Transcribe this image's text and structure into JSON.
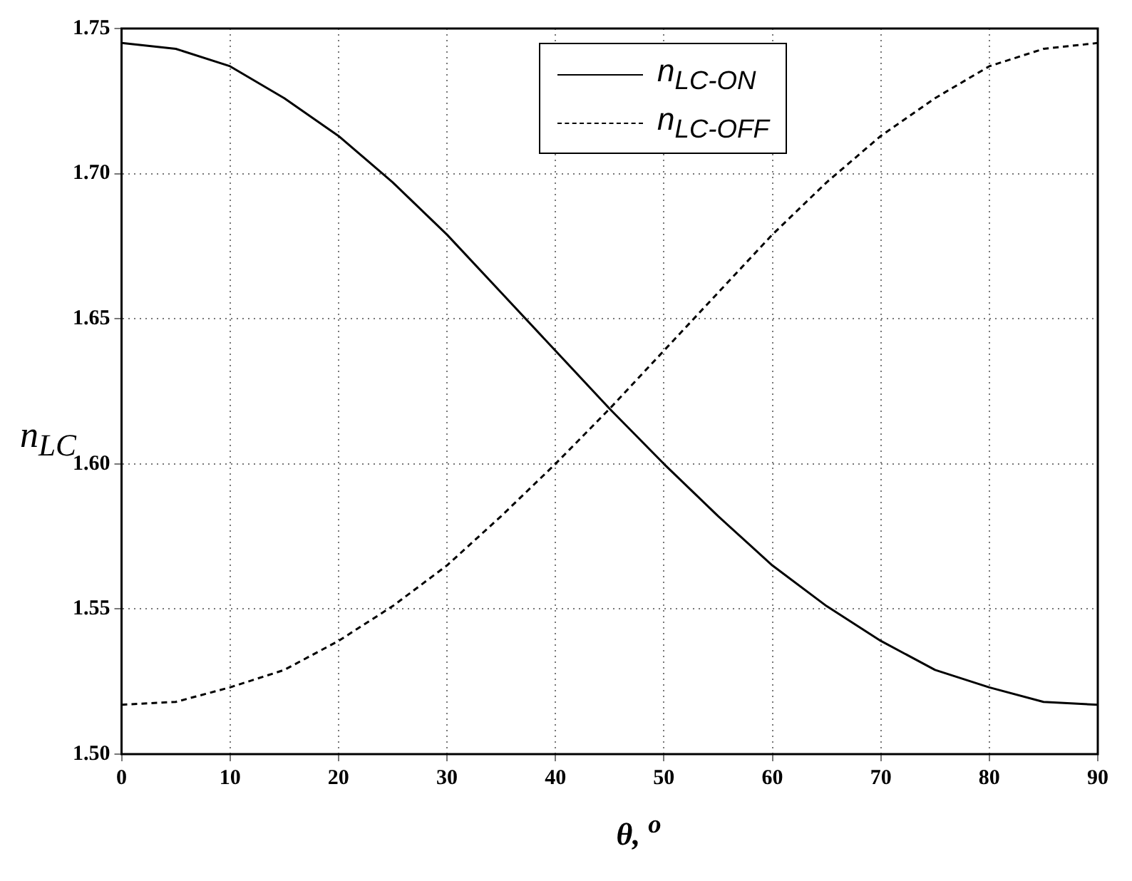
{
  "chart_data": {
    "type": "line",
    "xlabel": "θ, $^{o}$",
    "ylabel": "n$_{LC}$",
    "x": [
      0,
      5,
      10,
      15,
      20,
      25,
      30,
      35,
      40,
      45,
      50,
      55,
      60,
      65,
      70,
      75,
      80,
      85,
      90
    ],
    "series": [
      {
        "name": "n$_{LC-ON}$",
        "color": "#000000",
        "line_style": "solid",
        "values": [
          1.745,
          1.743,
          1.737,
          1.726,
          1.713,
          1.697,
          1.679,
          1.659,
          1.639,
          1.619,
          1.6,
          1.582,
          1.565,
          1.551,
          1.539,
          1.529,
          1.523,
          1.518,
          1.517
        ]
      },
      {
        "name": "n$_{LC-OFF}$",
        "color": "#000000",
        "line_style": "dashed",
        "values": [
          1.517,
          1.518,
          1.523,
          1.529,
          1.539,
          1.551,
          1.565,
          1.582,
          1.6,
          1.619,
          1.639,
          1.659,
          1.679,
          1.697,
          1.713,
          1.726,
          1.737,
          1.743,
          1.745
        ]
      }
    ],
    "xlim": [
      0,
      90
    ],
    "xticks": [
      0,
      10,
      20,
      30,
      40,
      50,
      60,
      70,
      80,
      90
    ],
    "ylim": [
      1.5,
      1.75
    ],
    "yticks": [
      {
        "value": 1.5,
        "label": "1.50"
      },
      {
        "value": 1.55,
        "label": "1.55"
      },
      {
        "value": 1.6,
        "label": "1.60"
      },
      {
        "value": 1.65,
        "label": "1.65"
      },
      {
        "value": 1.7,
        "label": "1.70"
      },
      {
        "value": 1.75,
        "label": "1.75"
      }
    ],
    "grid": true,
    "legend": "top",
    "marker": "none"
  }
}
